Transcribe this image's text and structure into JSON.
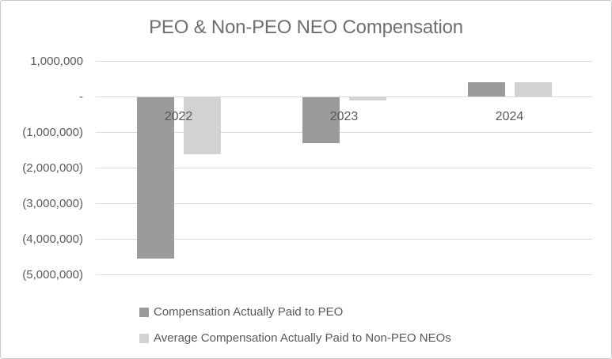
{
  "chart_data": {
    "type": "bar",
    "title": "PEO & Non-PEO NEO Compensation",
    "categories": [
      "2022",
      "2023",
      "2024"
    ],
    "series": [
      {
        "name": "Compensation Actually Paid to PEO",
        "color": "#9b9b9b",
        "values": [
          -4550000,
          -1290000,
          420000
        ]
      },
      {
        "name": "Average Compensation Actually Paid to Non-PEO NEOs",
        "color": "#d2d2d2",
        "values": [
          -1600000,
          -100000,
          410000
        ]
      }
    ],
    "y_axis": {
      "ticks": [
        {
          "label": "1,000,000",
          "value": 1000000
        },
        {
          "label": "-",
          "value": 0
        },
        {
          "label": "(1,000,000)",
          "value": -1000000
        },
        {
          "label": "(2,000,000)",
          "value": -2000000
        },
        {
          "label": "(3,000,000)",
          "value": -3000000
        },
        {
          "label": "(4,000,000)",
          "value": -4000000
        },
        {
          "label": "(5,000,000)",
          "value": -5000000
        }
      ],
      "ylim": [
        -5000000,
        1000000
      ]
    },
    "grid": true,
    "legend_position": "bottom-left",
    "colors": {
      "gridline": "#dbdbdb",
      "title_text": "#6f6f6f",
      "axis_text": "#595959"
    }
  }
}
